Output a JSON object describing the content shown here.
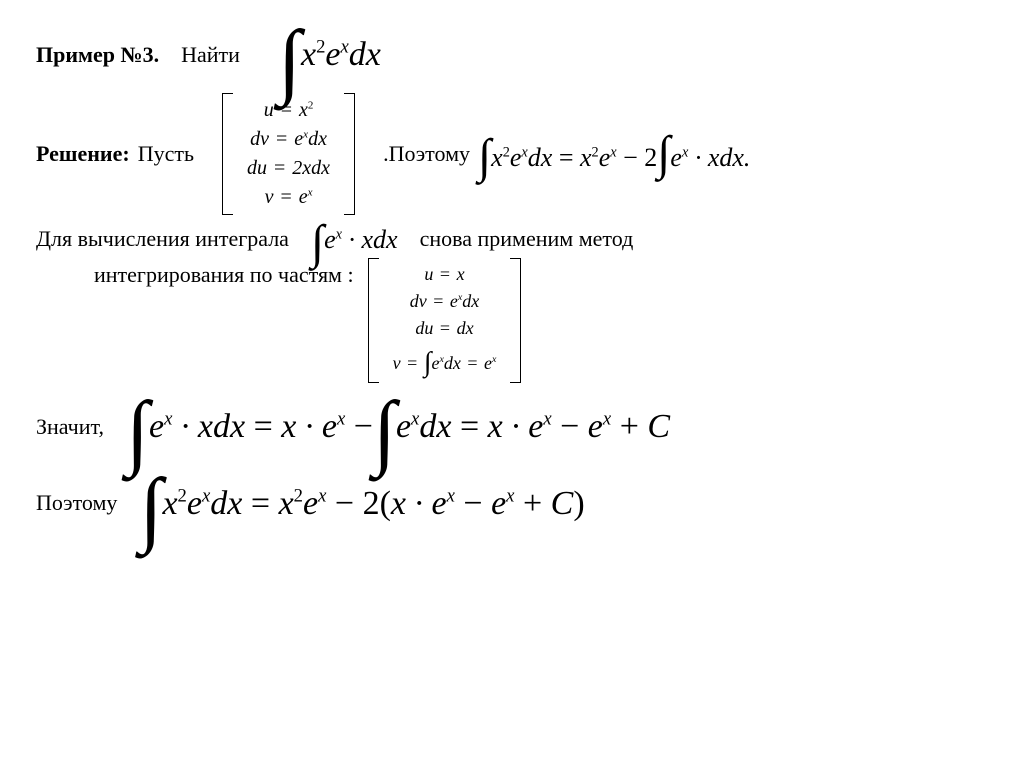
{
  "line1": {
    "example_label": "Пример №3.",
    "find_label": "Найти",
    "integral_html": "<span class=\"int\">∫</span><span class=\"m\"> x<sup>2</sup>e<sup class=\"i\">x</sup>dx</span>"
  },
  "line2": {
    "solution_label": "Решение:",
    "let_label": "Пусть",
    "bracket1": {
      "r1": "u <span class=\"eq\">=</span> x<sup>2</sup>",
      "r2": "dv <span class=\"eq\">=</span> e<sup class=\"i\">x</sup>dx",
      "r3": "du <span class=\"eq\">=</span> 2xdx",
      "r4": "v <span class=\"eq\">=</span> e<sup class=\"i\">x</sup>",
      "font_size": 20
    },
    "therefore_label": ".Поэтому",
    "result_html": "<span class=\"int-sm\">∫</span><span class=\"m-md\">x<sup>2</sup>e<sup class=\"i\">x</sup>dx <span class=\"upright\">=</span> x<sup>2</sup>e<sup class=\"i\">x</sup> <span class=\"upright\">− 2</span><span class=\"int-sm\">∫</span>e<sup class=\"i\">x</sup> · xdx.</span>"
  },
  "line3": {
    "prefix": "Для вычисления интеграла",
    "integral_html": "<span class=\"int-sm\">∫</span><span class=\"m-md\">e<sup class=\"i\">x</sup> · xdx</span>",
    "suffix": "снова применим метод",
    "cont": "интегрирования по частям :",
    "bracket2": {
      "r1": "u <span class=\"eq\">=</span> x",
      "r2": "dv <span class=\"eq\">=</span> e<sup class=\"i\">x</sup>dx",
      "r3": "du <span class=\"eq\">=</span> dx",
      "r4": "v <span class=\"eq\">=</span> <span style=\"font-style:normal;font-size:28px;position:relative;top:2px\">∫</span>e<sup class=\"i\">x</sup>dx <span class=\"eq\">=</span> e<sup class=\"i\">x</sup>",
      "font_size": 18
    }
  },
  "line4": {
    "label": "Значит,",
    "math_html": "<span class=\"int\">∫</span><span class=\"m\">e<sup class=\"i\">x</sup> · xdx <span class=\"upright\">=</span> x · e<sup class=\"i\">x</sup> <span class=\"upright\">−</span> </span><span class=\"int\">∫</span><span class=\"m\">e<sup class=\"i\">x</sup>dx <span class=\"upright\">=</span> x · e<sup class=\"i\">x</sup> <span class=\"upright\">−</span> e<sup class=\"i\">x</sup> <span class=\"upright\">+</span> C</span>"
  },
  "line5": {
    "label": "Поэтому",
    "math_html": "<span class=\"int\">∫</span><span class=\"m\">x<sup>2</sup>e<sup class=\"i\">x</sup>dx <span class=\"upright\">=</span> x<sup>2</sup>e<sup class=\"i\">x</sup> <span class=\"upright\">− 2(</span>x · e<sup class=\"i\">x</sup> <span class=\"upright\">−</span> e<sup class=\"i\">x</sup> <span class=\"upright\">+</span> C<span class=\"upright\">)</span></span>"
  },
  "style": {
    "background": "#ffffff",
    "text_color": "#000000",
    "body_font_size": 22,
    "math_font_size": 34,
    "math_md_font_size": 26,
    "bracket_border": "#000000"
  }
}
